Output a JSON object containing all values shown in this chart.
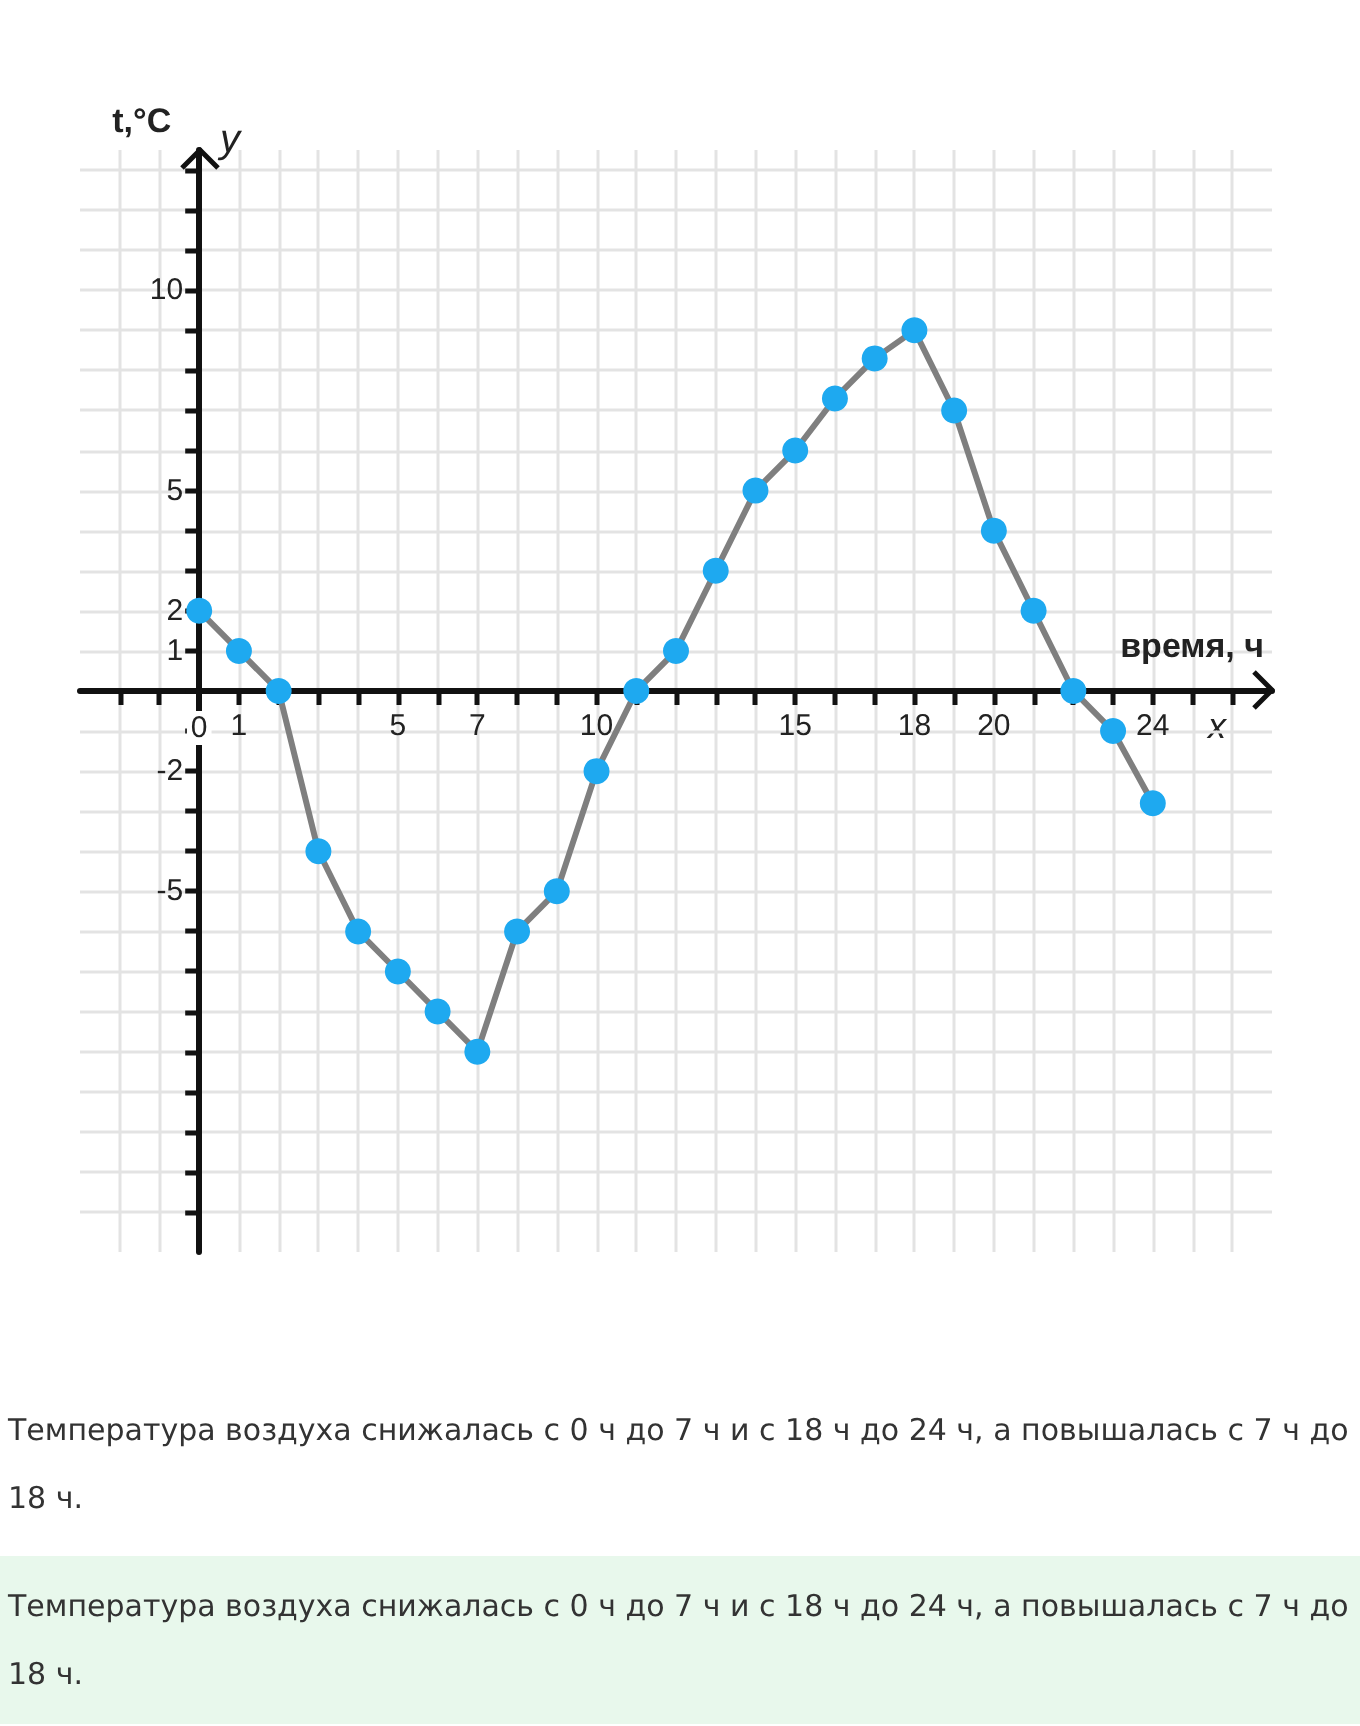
{
  "chart_data": {
    "type": "line",
    "xlabel": "время, ч",
    "ylabel": "t,°C",
    "x": [
      0,
      1,
      2,
      3,
      4,
      5,
      6,
      7,
      8,
      9,
      10,
      11,
      12,
      13,
      14,
      15,
      16,
      17,
      18,
      19,
      20,
      21,
      22,
      23,
      24
    ],
    "series": [
      {
        "color": "#7f7f7f",
        "colors": [
          "#1ea9f0",
          "#1ea9f0",
          "#1ea9f0",
          "#1ea9f0",
          "#1ea9f0",
          "#1ea9f0",
          "#1ea9f0",
          "#1ea9f0",
          "#1ea9f0",
          "#1ea9f0",
          "#1ea9f0",
          "#1ea9f0",
          "#1ea9f0",
          "#1ea9f0",
          "#1ea9f0",
          "#1ea9f0",
          "#1ea9f0",
          "#1ea9f0",
          "#1ea9f0",
          "#1ea9f0",
          "#1ea9f0",
          "#1ea9f0",
          "#1ea9f0",
          "#1ea9f0",
          "#1ea9f0"
        ],
        "values": [
          2,
          1,
          0,
          -4,
          -6,
          -7,
          -8,
          -9,
          -6,
          -5,
          -2,
          0,
          1,
          3,
          5,
          6,
          7.3,
          8.3,
          9,
          7,
          4,
          2,
          0,
          -1,
          -2.8
        ]
      }
    ],
    "xlim": [
      -3,
      27
    ],
    "ylim": [
      -14,
      13.5
    ],
    "xticks": [
      {
        "value": -2,
        "label": null
      },
      {
        "value": -1,
        "label": null
      },
      0,
      1,
      {
        "value": 2,
        "label": null
      },
      {
        "value": 3,
        "label": null
      },
      {
        "value": 4,
        "label": null
      },
      5,
      {
        "value": 6,
        "label": null
      },
      7,
      {
        "value": 8,
        "label": null
      },
      {
        "value": 9,
        "label": null
      },
      10,
      {
        "value": 11,
        "label": null
      },
      {
        "value": 12,
        "label": null
      },
      {
        "value": 13,
        "label": null
      },
      {
        "value": 14,
        "label": null
      },
      15,
      {
        "value": 16,
        "label": null
      },
      {
        "value": 17,
        "label": null
      },
      18,
      {
        "value": 19,
        "label": null
      },
      20,
      {
        "value": 21,
        "label": null
      },
      {
        "value": 22,
        "label": null
      },
      {
        "value": 23,
        "label": null
      },
      24,
      {
        "value": 25,
        "label": null
      },
      {
        "value": 26,
        "label": null
      }
    ],
    "yticks": [
      {
        "value": -13,
        "label": null
      },
      {
        "value": -12,
        "label": null
      },
      {
        "value": -11,
        "label": null
      },
      {
        "value": -10,
        "label": null
      },
      {
        "value": -9,
        "label": null
      },
      {
        "value": -8,
        "label": null
      },
      {
        "value": -7,
        "label": null
      },
      {
        "value": -6,
        "label": null
      },
      -5,
      {
        "value": -4,
        "label": null
      },
      {
        "value": -3,
        "label": null
      },
      -2,
      {
        "value": -1,
        "label": null
      },
      {
        "value": 0,
        "label": null
      },
      1,
      2,
      {
        "value": 3,
        "label": null
      },
      {
        "value": 4,
        "label": null
      },
      5,
      {
        "value": 6,
        "label": null
      },
      {
        "value": 7,
        "label": null
      },
      {
        "value": 8,
        "label": null
      },
      {
        "value": 9,
        "label": null
      },
      10,
      {
        "value": 11,
        "label": null
      },
      {
        "value": 12,
        "label": null
      },
      {
        "value": 13,
        "label": null
      }
    ],
    "grid": true,
    "marker": "circle",
    "line_style": "solid",
    "annotations": [
      "x",
      "y",
      "Температура воздуха снижалась с 0 ч до 7 ч и с 18 ч до 24 ч, а повышалась с 7 ч до 18 ч.",
      "Температура воздуха снижалась с 0 ч до 7 ч и с 18 ч до 24 ч, а повышалась с 7 ч до 18 ч."
    ]
  }
}
